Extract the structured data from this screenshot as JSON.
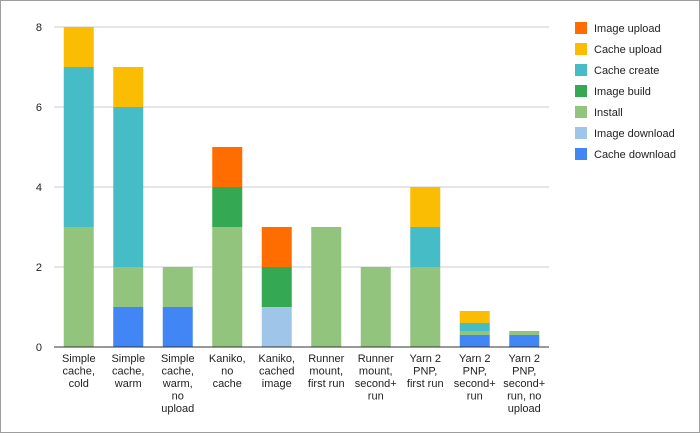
{
  "chart_data": {
    "type": "bar",
    "stacked": true,
    "title": "",
    "xlabel": "",
    "ylabel": "",
    "ylim": [
      0,
      8
    ],
    "yticks": [
      0,
      2,
      4,
      6,
      8
    ],
    "grid": true,
    "legend_position": "right",
    "categories": [
      [
        "Simple",
        "cache,",
        "cold"
      ],
      [
        "Simple",
        "cache,",
        "warm"
      ],
      [
        "Simple",
        "cache,",
        "warm,",
        "no",
        "upload"
      ],
      [
        "Kaniko,",
        "no",
        "cache"
      ],
      [
        "Kaniko,",
        "cached",
        "image"
      ],
      [
        "Runner",
        "mount,",
        "first run"
      ],
      [
        "Runner",
        "mount,",
        "second+",
        "run"
      ],
      [
        "Yarn 2",
        "PNP,",
        "first run"
      ],
      [
        "Yarn 2",
        "PNP,",
        "second+",
        "run"
      ],
      [
        "Yarn 2",
        "PNP,",
        "second+",
        "run, no",
        "upload"
      ]
    ],
    "series": [
      {
        "name": "Cache download",
        "color": "#4285f4",
        "values": [
          0,
          1,
          1,
          0,
          0,
          0,
          0,
          0,
          0.3,
          0.3
        ]
      },
      {
        "name": "Image download",
        "color": "#9fc5e8",
        "values": [
          0,
          0,
          0,
          0,
          1,
          0,
          0,
          0,
          0,
          0
        ]
      },
      {
        "name": "Install",
        "color": "#93c47d",
        "values": [
          3,
          1,
          1,
          3,
          0,
          3,
          2,
          2,
          0.1,
          0.1
        ]
      },
      {
        "name": "Image build",
        "color": "#34a853",
        "values": [
          0,
          0,
          0,
          1,
          1,
          0,
          0,
          0,
          0,
          0
        ]
      },
      {
        "name": "Cache create",
        "color": "#46bdc6",
        "values": [
          4,
          4,
          0,
          0,
          0,
          0,
          0,
          1,
          0.2,
          0
        ]
      },
      {
        "name": "Cache upload",
        "color": "#fbbc04",
        "values": [
          1,
          1,
          0,
          0,
          0,
          0,
          0,
          1,
          0.3,
          0
        ]
      },
      {
        "name": "Image upload",
        "color": "#ff6d01",
        "values": [
          0,
          0,
          0,
          1,
          1,
          0,
          0,
          0,
          0,
          0
        ]
      }
    ],
    "legend_order": [
      "Image upload",
      "Cache upload",
      "Cache create",
      "Image build",
      "Install",
      "Image download",
      "Cache download"
    ]
  }
}
